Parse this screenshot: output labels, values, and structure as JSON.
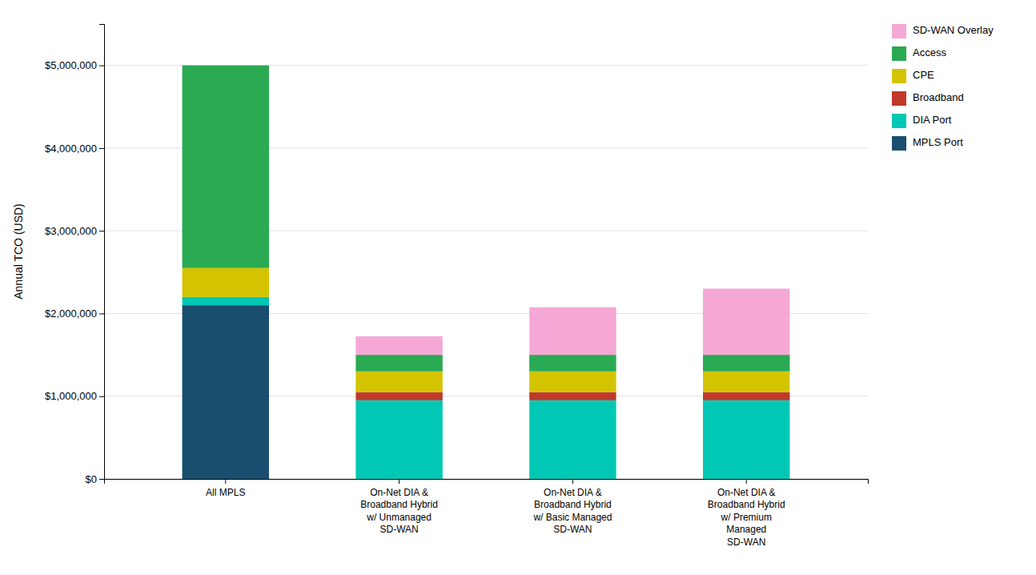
{
  "chart_data": {
    "type": "bar",
    "stacked": true,
    "categories": [
      "All MPLS",
      "On-Net DIA &\nBroadband Hybrid\nw/ Unmanaged\nSD-WAN",
      "On-Net DIA &\nBroadband Hybrid\nw/ Basic Managed\nSD-WAN",
      "On-Net DIA &\nBroadband Hybrid\nw/ Premium\nManaged\nSD-WAN"
    ],
    "series": [
      {
        "name": "MPLS Port",
        "color": "#1a4e6e",
        "values": [
          2100000,
          0,
          0,
          0
        ]
      },
      {
        "name": "DIA Port",
        "color": "#00c8b4",
        "values": [
          100000,
          950000,
          950000,
          950000
        ]
      },
      {
        "name": "Broadband",
        "color": "#c0392b",
        "values": [
          0,
          100000,
          100000,
          100000
        ]
      },
      {
        "name": "CPE",
        "color": "#d4c400",
        "values": [
          350000,
          250000,
          250000,
          250000
        ]
      },
      {
        "name": "Access",
        "color": "#2aaa52",
        "values": [
          2450000,
          200000,
          200000,
          200000
        ]
      },
      {
        "name": "SD-WAN Overlay",
        "color": "#f5a8d5",
        "values": [
          0,
          225000,
          575000,
          800000
        ]
      }
    ],
    "y_label": "Annual TCO (USD)",
    "ylim": [
      0,
      5500000
    ],
    "yticks": [
      {
        "value": 0,
        "label": "$0"
      },
      {
        "value": 1000000,
        "label": "$1,000,000"
      },
      {
        "value": 2000000,
        "label": "$2,000,000"
      },
      {
        "value": 3000000,
        "label": "$3,000,000"
      },
      {
        "value": 4000000,
        "label": "$4,000,000"
      },
      {
        "value": 5000000,
        "label": "$5,000,000"
      }
    ],
    "grid": true,
    "legend": "right"
  }
}
